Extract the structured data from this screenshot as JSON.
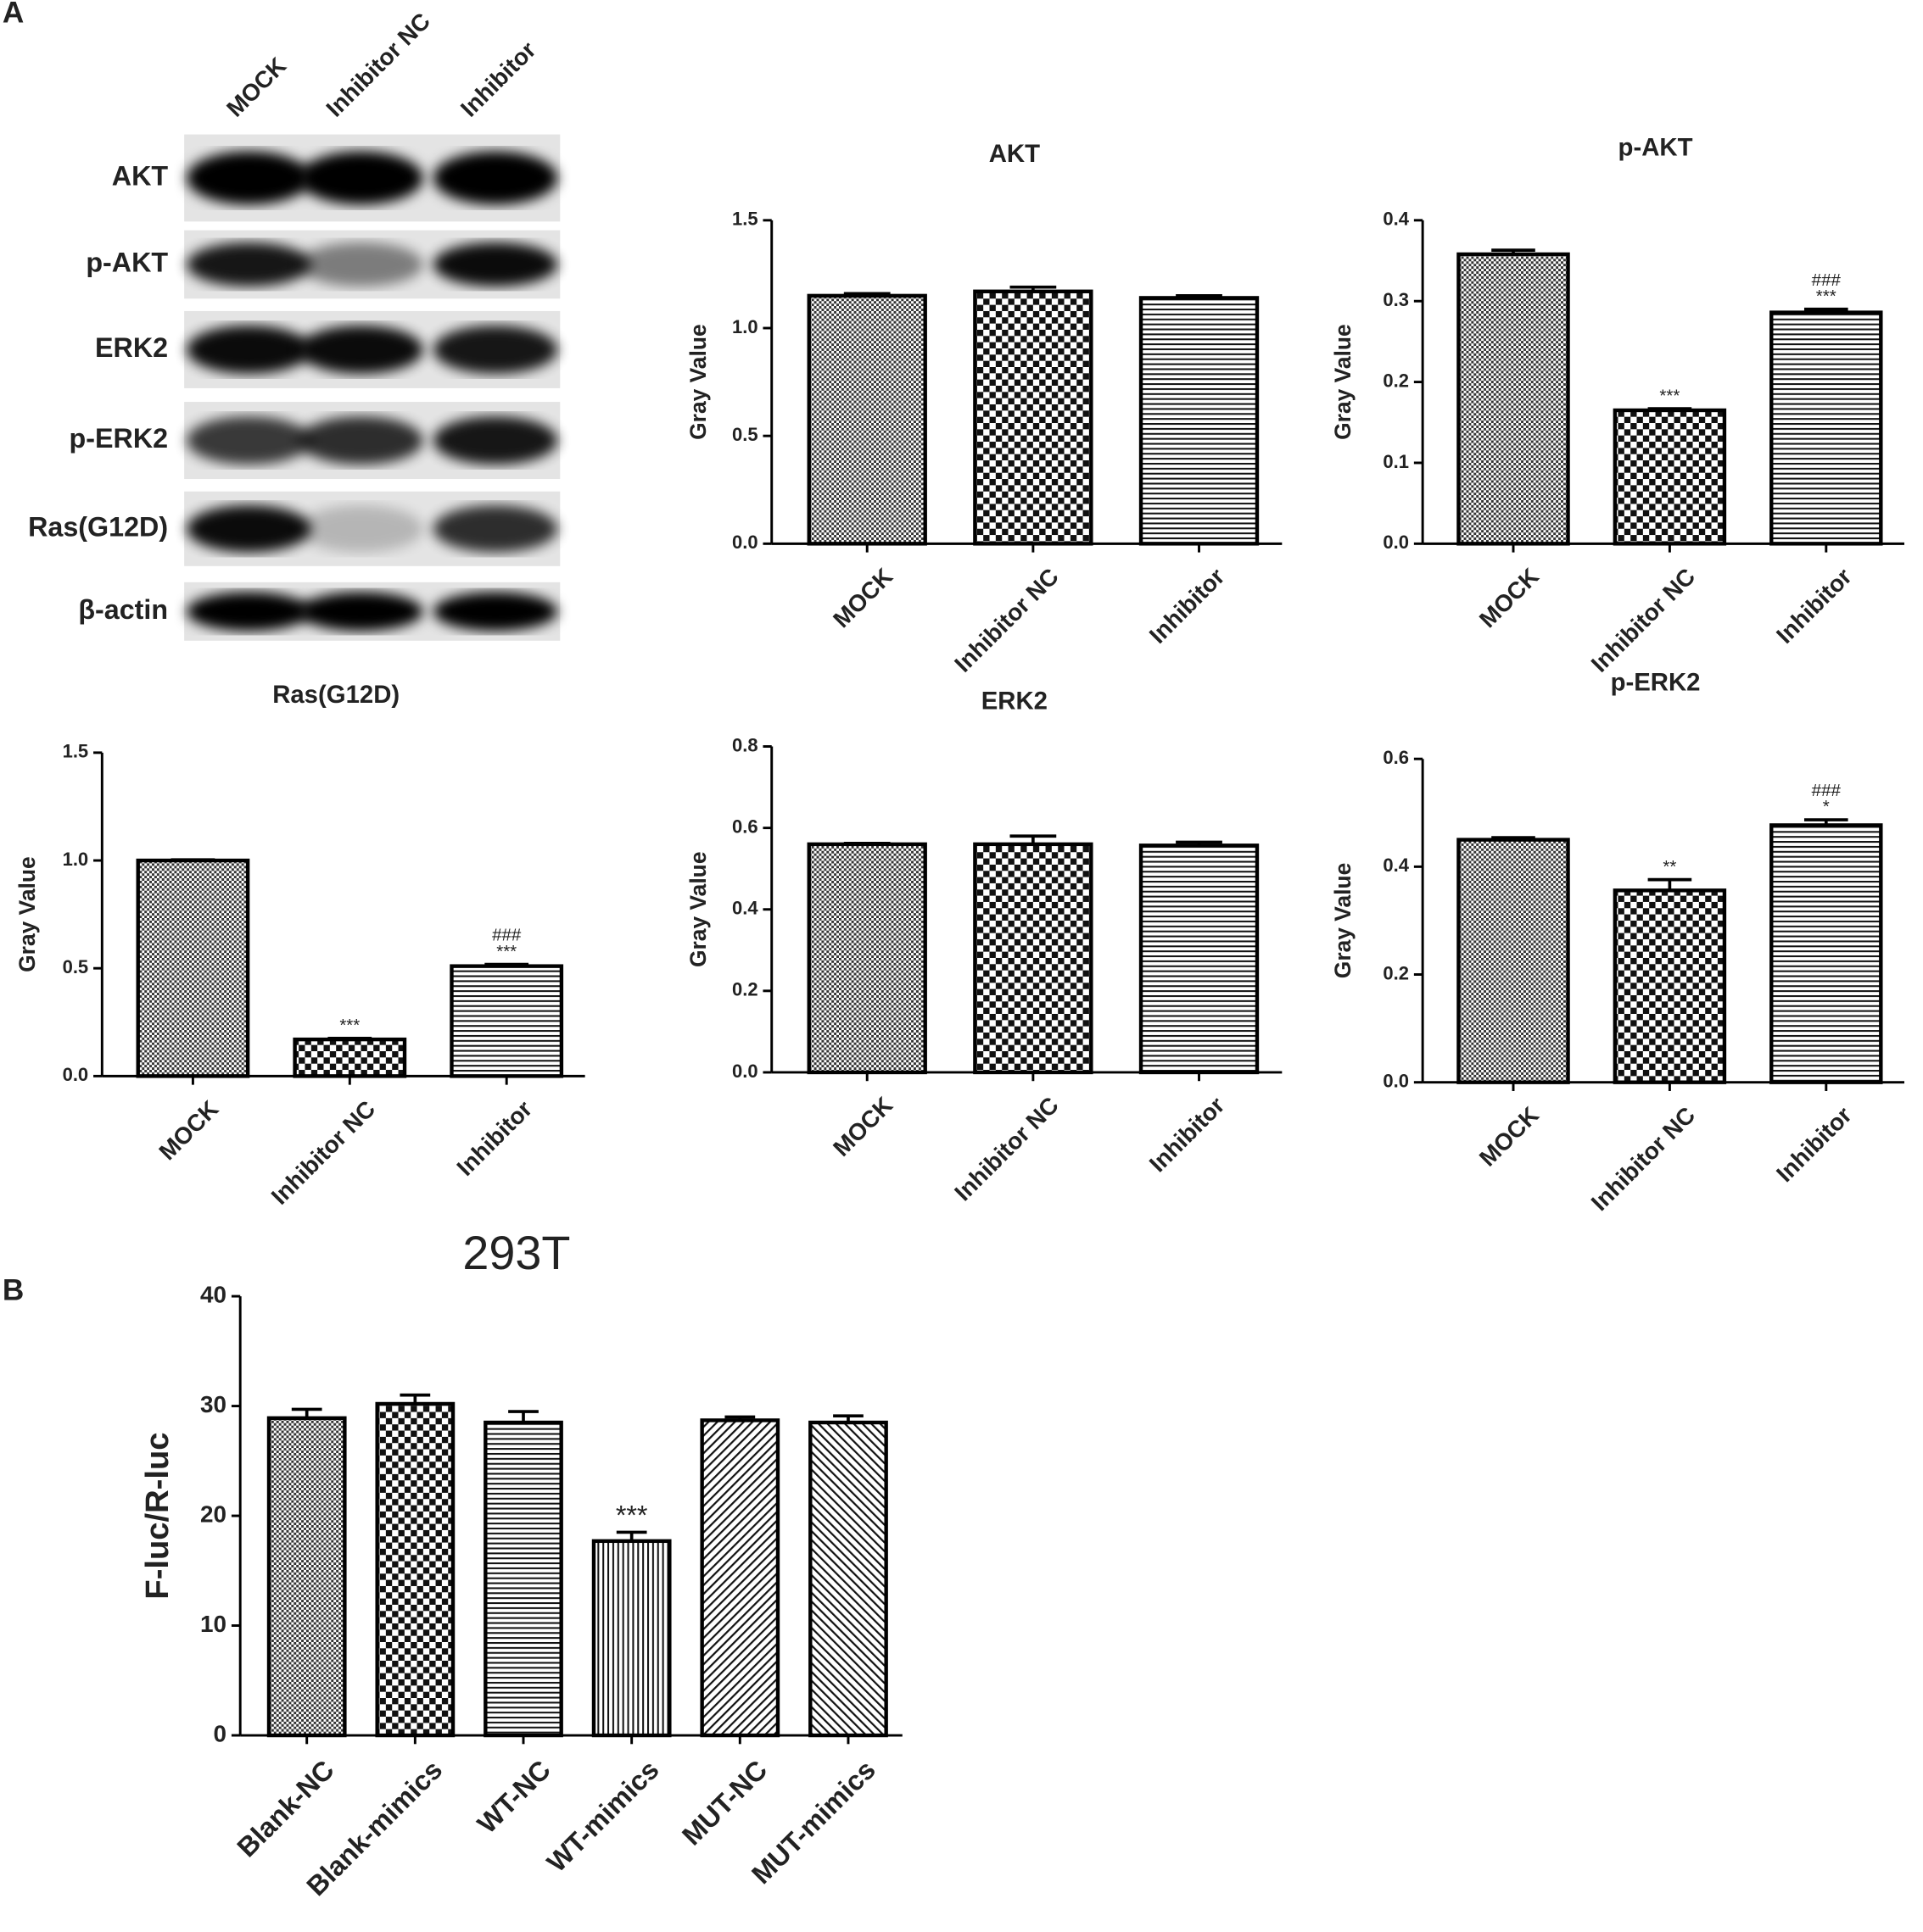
{
  "panel_labels": [
    "A",
    "B"
  ],
  "blot": {
    "lanes": [
      "MOCK",
      "Inhibitor NC",
      "Inhibitor"
    ],
    "proteins": [
      "AKT",
      "p-AKT",
      "ERK2",
      "p-ERK2",
      "Ras(G12D)",
      "β-actin"
    ]
  },
  "chart_data": [
    {
      "type": "bar",
      "title": "AKT",
      "ylabel": "Gray Value",
      "categories": [
        "MOCK",
        "Inhibitor NC",
        "Inhibitor"
      ],
      "values": [
        1.15,
        1.17,
        1.14
      ],
      "errors": [
        0.01,
        0.02,
        0.01
      ],
      "significance": [
        null,
        null,
        null
      ],
      "ylim": [
        0,
        1.5
      ],
      "yticks": [
        {
          "value": 0,
          "label": "0.0"
        },
        0.5,
        {
          "value": 1,
          "label": "1.0"
        },
        1.5
      ]
    },
    {
      "type": "bar",
      "title": "p-AKT",
      "ylabel": "Gray Value",
      "categories": [
        "MOCK",
        "Inhibitor NC",
        "Inhibitor"
      ],
      "values": [
        0.358,
        0.165,
        0.286
      ],
      "errors": [
        0.005,
        0.002,
        0.004
      ],
      "significance": [
        null,
        "***",
        [
          "###",
          "***"
        ]
      ],
      "ylim": [
        0,
        0.4
      ],
      "yticks": [
        {
          "value": 0,
          "label": "0.0"
        },
        0.1,
        0.2,
        0.3,
        0.4
      ]
    },
    {
      "type": "bar",
      "title": "Ras(G12D)",
      "ylabel": "Gray Value",
      "categories": [
        "MOCK",
        "Inhibitor NC",
        "Inhibitor"
      ],
      "values": [
        1.0,
        0.17,
        0.51
      ],
      "errors": [
        0.003,
        0.005,
        0.008
      ],
      "significance": [
        null,
        "***",
        [
          "###",
          "***"
        ]
      ],
      "ylim": [
        0,
        1.5
      ],
      "yticks": [
        {
          "value": 0,
          "label": "0.0"
        },
        0.5,
        {
          "value": 1,
          "label": "1.0"
        },
        1.5
      ]
    },
    {
      "type": "bar",
      "title": "ERK2",
      "ylabel": "Gray Value",
      "categories": [
        "MOCK",
        "Inhibitor NC",
        "Inhibitor"
      ],
      "values": [
        0.56,
        0.56,
        0.557
      ],
      "errors": [
        0.002,
        0.02,
        0.008
      ],
      "significance": [
        null,
        null,
        null
      ],
      "ylim": [
        0,
        0.8
      ],
      "yticks": [
        {
          "value": 0,
          "label": "0.0"
        },
        0.2,
        0.4,
        0.6,
        0.8
      ]
    },
    {
      "type": "bar",
      "title": "p-ERK2",
      "ylabel": "Gray Value",
      "categories": [
        "MOCK",
        "Inhibitor NC",
        "Inhibitor"
      ],
      "values": [
        0.45,
        0.356,
        0.477
      ],
      "errors": [
        0.004,
        0.02,
        0.01
      ],
      "significance": [
        null,
        "**",
        [
          "###",
          "*"
        ]
      ],
      "ylim": [
        0,
        0.6
      ],
      "yticks": [
        {
          "value": 0,
          "label": "0.0"
        },
        0.2,
        0.4,
        0.6
      ]
    },
    {
      "type": "bar",
      "title": "293T",
      "ylabel": "F-luc/R-luc",
      "categories": [
        "Blank-NC",
        "Blank-mimics",
        "WT-NC",
        "WT-mimics",
        "MUT-NC",
        "MUT-mimics"
      ],
      "values": [
        28.9,
        30.2,
        28.5,
        17.7,
        28.7,
        28.5
      ],
      "errors": [
        0.8,
        0.8,
        1.0,
        0.8,
        0.3,
        0.6
      ],
      "significance": [
        null,
        null,
        null,
        "***",
        null,
        null
      ],
      "ylim": [
        0,
        40
      ],
      "yticks": [
        0,
        10,
        20,
        30,
        40
      ]
    }
  ]
}
